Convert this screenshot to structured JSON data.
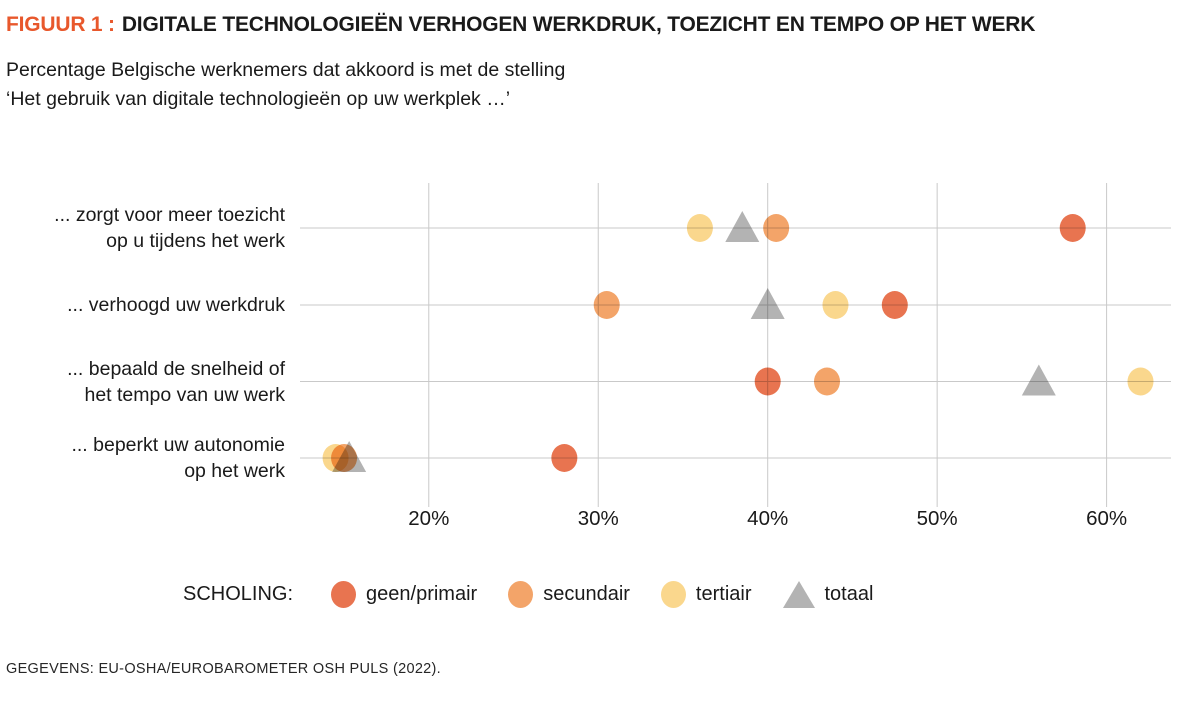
{
  "header": {
    "figure_label": "FIGUUR 1 :",
    "title": "DIGITALE TECHNOLOGIEËN VERHOGEN WERKDRUK, TOEZICHT EN TEMPO OP HET WERK",
    "subtitle_line1": "Percentage Belgische werknemers dat akkoord is met de stelling",
    "subtitle_line2": "‘Het gebruik van digitale technologieën op uw werkplek …’"
  },
  "chart_data": {
    "type": "scatter",
    "variant": "horizontal_dot_plot",
    "grid": true,
    "x_axis": {
      "min": 12.4,
      "max": 63.8,
      "unit": "%",
      "ticks": [
        20,
        30,
        40,
        50,
        60
      ],
      "tick_labels": [
        "20%",
        "30%",
        "40%",
        "50%",
        "60%"
      ]
    },
    "categories": [
      {
        "id": "toezicht",
        "lines": [
          "... zorgt voor meer toezicht",
          "op u tijdens het werk"
        ]
      },
      {
        "id": "werkdruk",
        "lines": [
          "... verhoogd uw werkdruk"
        ]
      },
      {
        "id": "tempo",
        "lines": [
          "... bepaald de snelheid of",
          "het tempo van uw werk"
        ]
      },
      {
        "id": "autonomie",
        "lines": [
          "... beperkt uw autonomie",
          "op het werk"
        ]
      }
    ],
    "series": [
      {
        "name": "geen/primair",
        "marker": "circle",
        "color": "#e87450",
        "values": [
          58,
          47.5,
          40,
          28
        ]
      },
      {
        "name": "secundair",
        "marker": "circle",
        "color": "#f3a469",
        "values": [
          40.5,
          30.5,
          43.5,
          15
        ]
      },
      {
        "name": "tertiair",
        "marker": "circle",
        "color": "#fad78d",
        "values": [
          36,
          44,
          62,
          14.5
        ]
      },
      {
        "name": "totaal",
        "marker": "triangle",
        "color": "#b3b3b3",
        "values": [
          38.5,
          40,
          56,
          15.3
        ]
      }
    ],
    "legend": {
      "title": "SCHOLING:",
      "position": "bottom"
    }
  },
  "footer": {
    "source": "GEGEVENS: EU-OSHA/EUROBAROMETER OSH PULS (2022)."
  },
  "colors": {
    "accent": "#e8582c",
    "text": "#1a1a1a",
    "gridline": "#c9c9c9"
  }
}
